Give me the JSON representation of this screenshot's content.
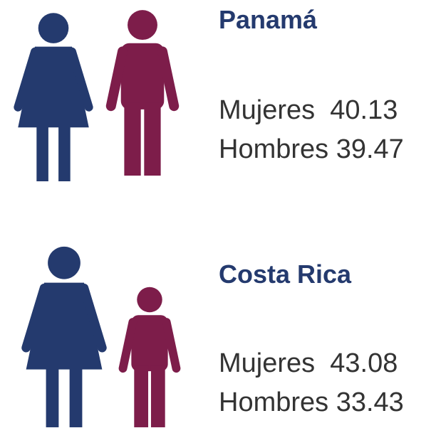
{
  "sections": [
    {
      "title": "Panamá",
      "rows": [
        {
          "label": "Mujeres",
          "value": 40.13
        },
        {
          "label": "Hombres",
          "value": 39.47
        }
      ]
    },
    {
      "title": "Costa Rica",
      "rows": [
        {
          "label": "Mujeres",
          "value": 43.08
        },
        {
          "label": "Hombres",
          "value": 33.43
        }
      ]
    }
  ],
  "colors": {
    "women": "#243a6e",
    "men": "#7d1d4a",
    "title": "#243a6e"
  }
}
